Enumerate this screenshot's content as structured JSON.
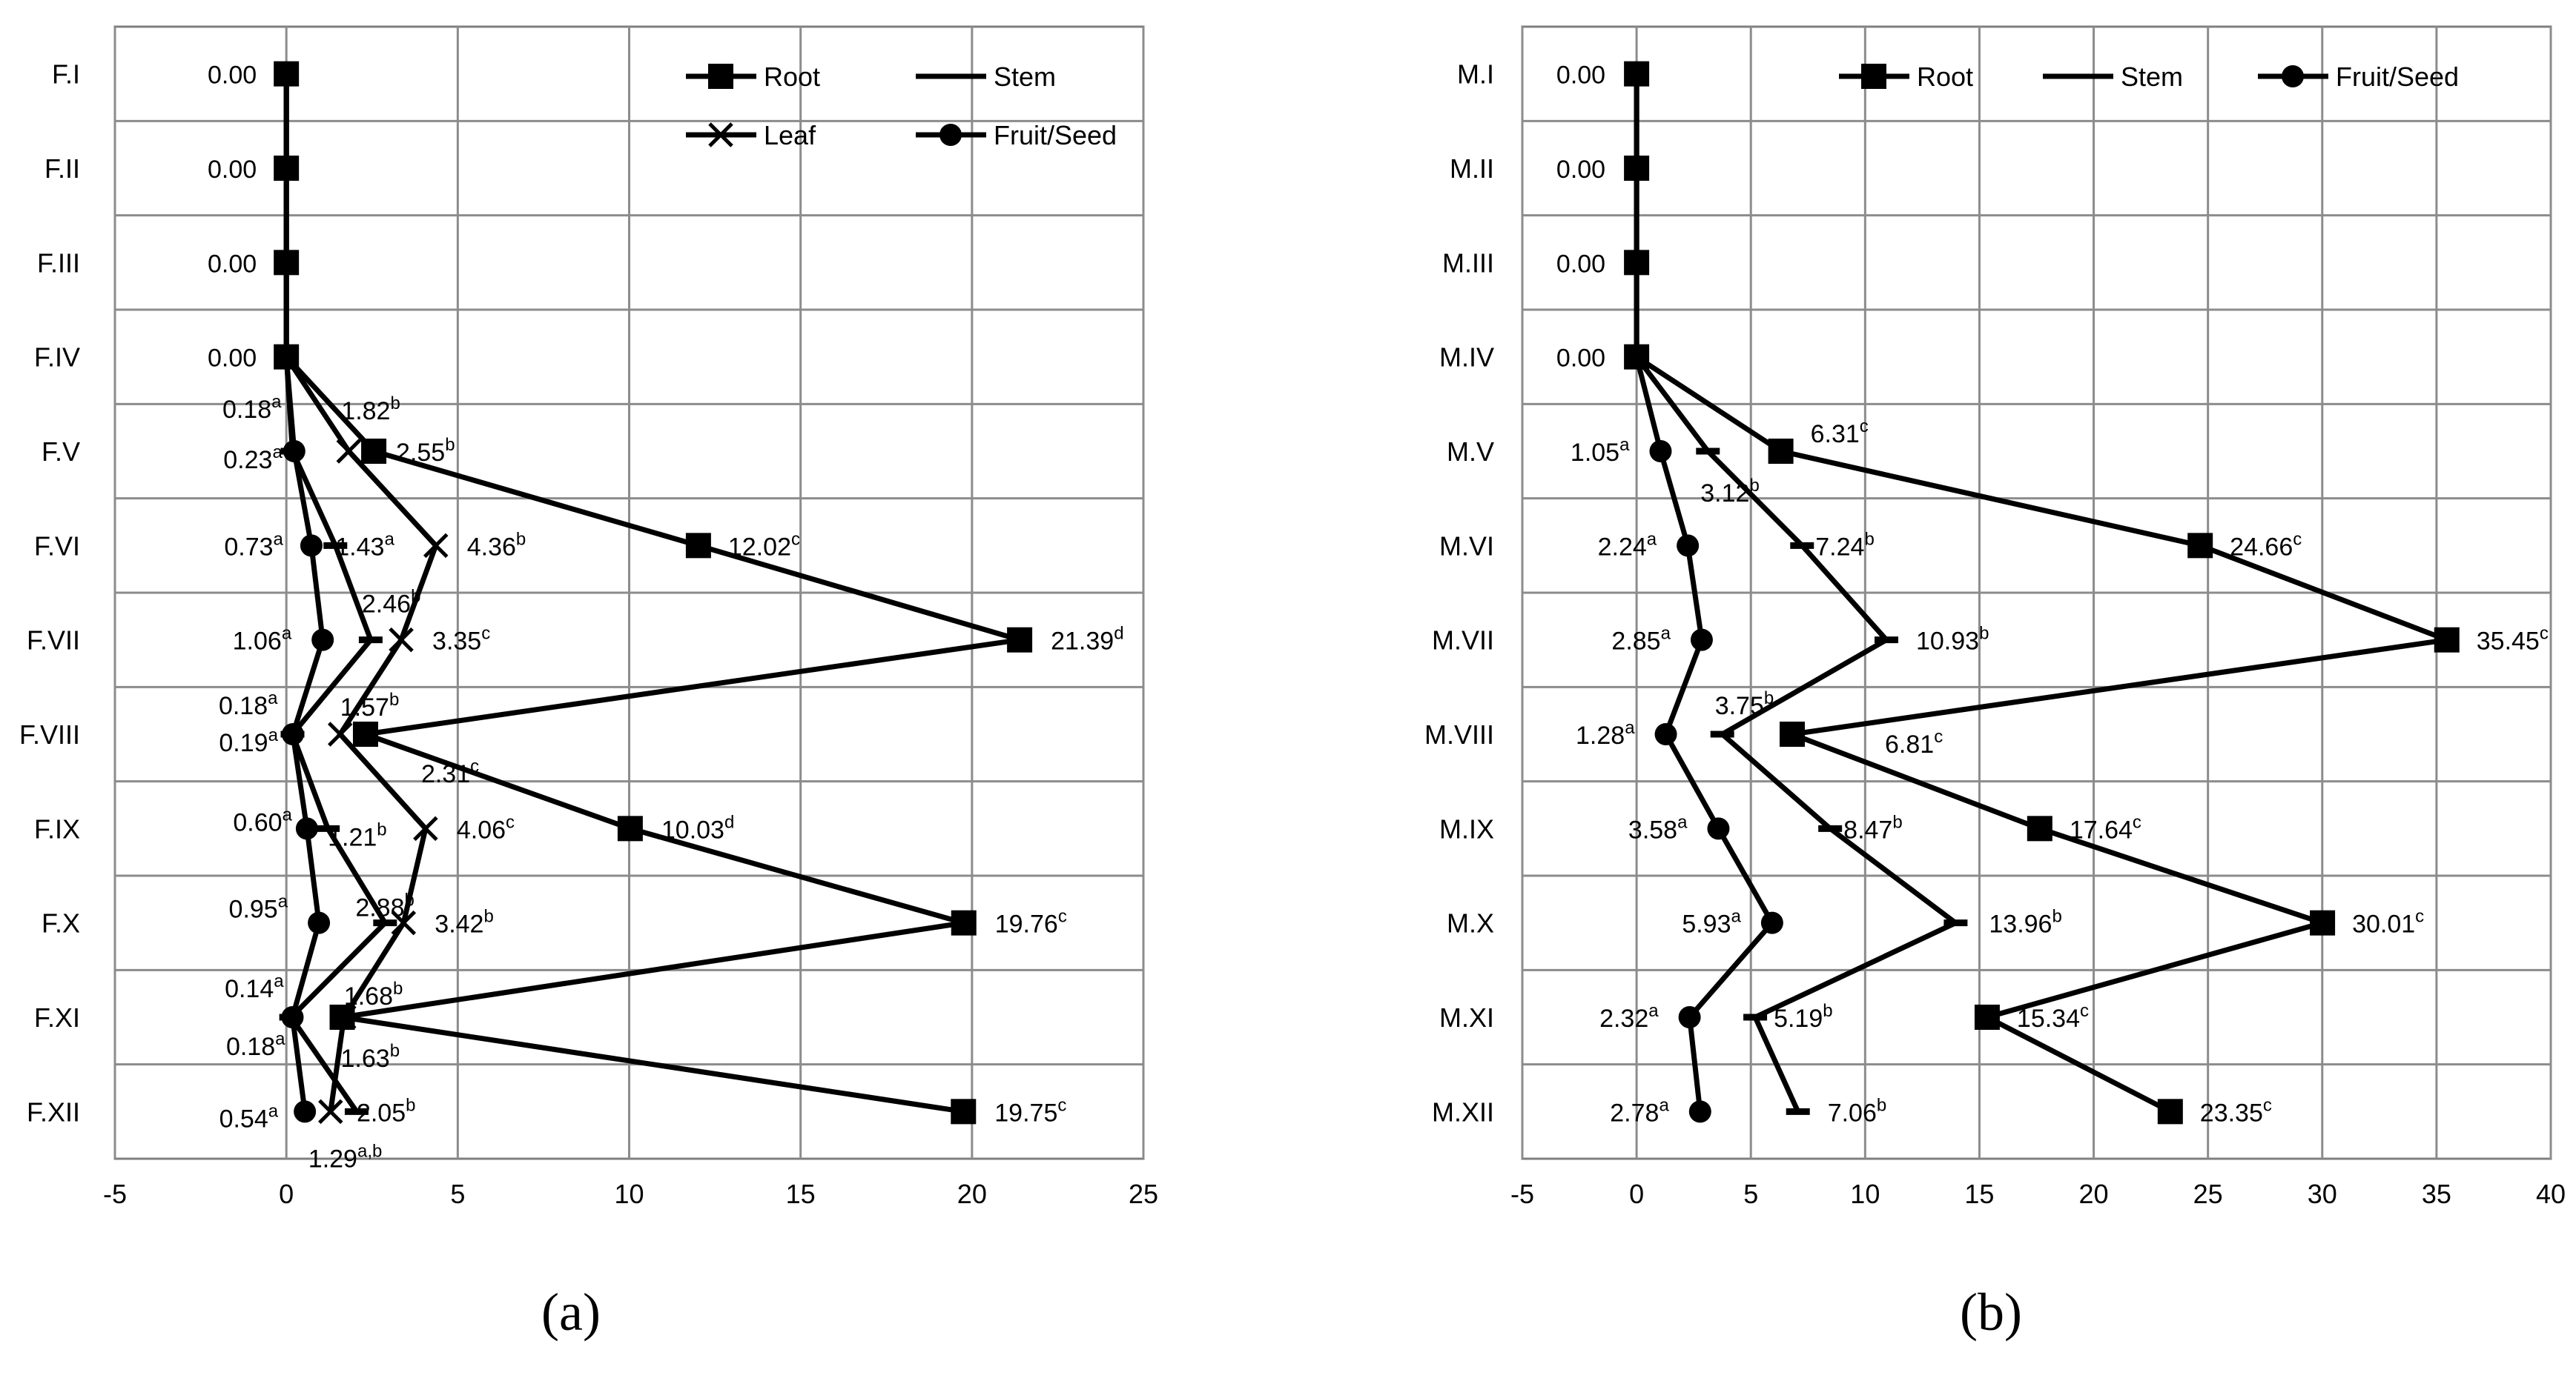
{
  "chart_data": [
    {
      "type": "line",
      "panel_label": "(a)",
      "orientation": "horizontal-values",
      "categories": [
        "F.I",
        "F.II",
        "F.III",
        "F.IV",
        "F.V",
        "F.VI",
        "F.VII",
        "F.VIII",
        "F.IX",
        "F.X",
        "F.XI",
        "F.XII"
      ],
      "xlim": [
        -5,
        25
      ],
      "xticks": [
        -5,
        0,
        5,
        10,
        15,
        20,
        25
      ],
      "grid": true,
      "legend": [
        "Root",
        "Stem",
        "Leaf",
        "Fruit/Seed"
      ],
      "legend_placement": "top-right",
      "series": [
        {
          "name": "Root",
          "marker": "square",
          "values": [
            0,
            0,
            0,
            0,
            2.55,
            12.02,
            21.39,
            2.31,
            10.03,
            19.76,
            1.63,
            19.75
          ]
        },
        {
          "name": "Stem",
          "marker": "dash",
          "values": [
            0,
            0,
            0,
            0,
            0.18,
            1.43,
            2.46,
            0.18,
            1.21,
            2.88,
            0.14,
            2.05
          ]
        },
        {
          "name": "Leaf",
          "marker": "star",
          "values": [
            0,
            0,
            0,
            0,
            1.82,
            4.36,
            3.35,
            1.57,
            4.06,
            3.42,
            1.68,
            1.29
          ]
        },
        {
          "name": "Fruit/Seed",
          "marker": "circle",
          "values": [
            0,
            0,
            0,
            0,
            0.23,
            0.73,
            1.06,
            0.19,
            0.6,
            0.95,
            0.18,
            0.54
          ]
        }
      ],
      "annotations": [
        {
          "text": "0.00",
          "sup": "",
          "cat": 0,
          "val": 0
        },
        {
          "text": "0.00",
          "sup": "",
          "cat": 1,
          "val": 0
        },
        {
          "text": "0.00",
          "sup": "",
          "cat": 2,
          "val": 0
        },
        {
          "text": "0.00",
          "sup": "",
          "cat": 3,
          "val": 0
        },
        {
          "text": "0.18",
          "sup": "a",
          "cat": 4,
          "val": 0.18
        },
        {
          "text": "1.82",
          "sup": "b",
          "cat": 4,
          "val": 1.82
        },
        {
          "text": "0.23",
          "sup": "a",
          "cat": 4,
          "val": 0.23
        },
        {
          "text": "2.55",
          "sup": "b",
          "cat": 4,
          "val": 2.55
        },
        {
          "text": "0.73",
          "sup": "a",
          "cat": 5,
          "val": 0.73
        },
        {
          "text": "1.43",
          "sup": "a",
          "cat": 5,
          "val": 1.43
        },
        {
          "text": "4.36",
          "sup": "b",
          "cat": 5,
          "val": 4.36
        },
        {
          "text": "12.02",
          "sup": "c",
          "cat": 5,
          "val": 12.02
        },
        {
          "text": "2.46",
          "sup": "b",
          "cat": 6,
          "val": 2.46
        },
        {
          "text": "1.06",
          "sup": "a",
          "cat": 6,
          "val": 1.06
        },
        {
          "text": "3.35",
          "sup": "c",
          "cat": 6,
          "val": 3.35
        },
        {
          "text": "21.39",
          "sup": "d",
          "cat": 6,
          "val": 21.39
        },
        {
          "text": "0.18",
          "sup": "a",
          "cat": 7,
          "val": 0.18
        },
        {
          "text": "1.57",
          "sup": "b",
          "cat": 7,
          "val": 1.57
        },
        {
          "text": "0.19",
          "sup": "a",
          "cat": 7,
          "val": 0.19
        },
        {
          "text": "2.31",
          "sup": "c",
          "cat": 7,
          "val": 2.31
        },
        {
          "text": "0.60",
          "sup": "a",
          "cat": 8,
          "val": 0.6
        },
        {
          "text": "1.21",
          "sup": "b",
          "cat": 8,
          "val": 1.21
        },
        {
          "text": "4.06",
          "sup": "c",
          "cat": 8,
          "val": 4.06
        },
        {
          "text": "10.03",
          "sup": "d",
          "cat": 8,
          "val": 10.03
        },
        {
          "text": "0.95",
          "sup": "a",
          "cat": 9,
          "val": 0.95
        },
        {
          "text": "2.88",
          "sup": "b",
          "cat": 9,
          "val": 2.88
        },
        {
          "text": "3.42",
          "sup": "b",
          "cat": 9,
          "val": 3.42
        },
        {
          "text": "19.76",
          "sup": "c",
          "cat": 9,
          "val": 19.76
        },
        {
          "text": "0.14",
          "sup": "a",
          "cat": 10,
          "val": 0.14
        },
        {
          "text": "1.68",
          "sup": "b",
          "cat": 10,
          "val": 1.68
        },
        {
          "text": "0.18",
          "sup": "a",
          "cat": 10,
          "val": 0.18
        },
        {
          "text": "1.63",
          "sup": "b",
          "cat": 10,
          "val": 1.63
        },
        {
          "text": "0.54",
          "sup": "a",
          "cat": 11,
          "val": 0.54
        },
        {
          "text": "2.05",
          "sup": "b",
          "cat": 11,
          "val": 2.05
        },
        {
          "text": "1.29",
          "sup": "a,b",
          "cat": 11,
          "val": 1.29
        },
        {
          "text": "19.75",
          "sup": "c",
          "cat": 11,
          "val": 19.75
        }
      ]
    },
    {
      "type": "line",
      "panel_label": "(b)",
      "orientation": "horizontal-values",
      "categories": [
        "M.I",
        "M.II",
        "M.III",
        "M.IV",
        "M.V",
        "M.VI",
        "M.VII",
        "M.VIII",
        "M.IX",
        "M.X",
        "M.XI",
        "M.XII"
      ],
      "xlim": [
        -5,
        40
      ],
      "xticks": [
        -5,
        0,
        5,
        10,
        15,
        20,
        25,
        30,
        35,
        40
      ],
      "grid": true,
      "legend": [
        "Root",
        "Stem",
        "Fruit/Seed"
      ],
      "legend_placement": "top-right",
      "series": [
        {
          "name": "Root",
          "marker": "square",
          "values": [
            0,
            0,
            0,
            0,
            6.31,
            24.66,
            35.45,
            6.81,
            17.64,
            30.01,
            15.34,
            23.35
          ]
        },
        {
          "name": "Stem",
          "marker": "dash",
          "values": [
            0,
            0,
            0,
            0,
            3.12,
            7.24,
            10.93,
            3.75,
            8.47,
            13.96,
            5.19,
            7.06
          ]
        },
        {
          "name": "Fruit/Seed",
          "marker": "circle",
          "values": [
            0,
            0,
            0,
            0,
            1.05,
            2.24,
            2.85,
            1.28,
            3.58,
            5.93,
            2.32,
            2.78
          ]
        }
      ],
      "annotations": [
        {
          "text": "0.00",
          "sup": "",
          "cat": 0,
          "val": 0
        },
        {
          "text": "0.00",
          "sup": "",
          "cat": 1,
          "val": 0
        },
        {
          "text": "0.00",
          "sup": "",
          "cat": 2,
          "val": 0
        },
        {
          "text": "0.00",
          "sup": "",
          "cat": 3,
          "val": 0
        },
        {
          "text": "6.31",
          "sup": "c",
          "cat": 4,
          "val": 6.31
        },
        {
          "text": "1.05",
          "sup": "a",
          "cat": 4,
          "val": 1.05
        },
        {
          "text": "3.12",
          "sup": "b",
          "cat": 4,
          "val": 3.12
        },
        {
          "text": "2.24",
          "sup": "a",
          "cat": 5,
          "val": 2.24
        },
        {
          "text": "7.24",
          "sup": "b",
          "cat": 5,
          "val": 7.24
        },
        {
          "text": "24.66",
          "sup": "c",
          "cat": 5,
          "val": 24.66
        },
        {
          "text": "2.85",
          "sup": "a",
          "cat": 6,
          "val": 2.85
        },
        {
          "text": "10.93",
          "sup": "b",
          "cat": 6,
          "val": 10.93
        },
        {
          "text": "35.45",
          "sup": "c",
          "cat": 6,
          "val": 35.45
        },
        {
          "text": "3.75",
          "sup": "b",
          "cat": 7,
          "val": 3.75
        },
        {
          "text": "1.28",
          "sup": "a",
          "cat": 7,
          "val": 1.28
        },
        {
          "text": "6.81",
          "sup": "c",
          "cat": 7,
          "val": 6.81
        },
        {
          "text": "3.58",
          "sup": "a",
          "cat": 8,
          "val": 3.58
        },
        {
          "text": "8.47",
          "sup": "b",
          "cat": 8,
          "val": 8.47
        },
        {
          "text": "17.64",
          "sup": "c",
          "cat": 8,
          "val": 17.64
        },
        {
          "text": "5.93",
          "sup": "a",
          "cat": 9,
          "val": 5.93
        },
        {
          "text": "13.96",
          "sup": "b",
          "cat": 9,
          "val": 13.96
        },
        {
          "text": "30.01",
          "sup": "c",
          "cat": 9,
          "val": 30.01
        },
        {
          "text": "2.32",
          "sup": "a",
          "cat": 10,
          "val": 2.32
        },
        {
          "text": "5.19",
          "sup": "b",
          "cat": 10,
          "val": 5.19
        },
        {
          "text": "15.34",
          "sup": "c",
          "cat": 10,
          "val": 15.34
        },
        {
          "text": "2.78",
          "sup": "a",
          "cat": 11,
          "val": 2.78
        },
        {
          "text": "7.06",
          "sup": "b",
          "cat": 11,
          "val": 7.06
        },
        {
          "text": "23.35",
          "sup": "c",
          "cat": 11,
          "val": 23.35
        }
      ]
    }
  ]
}
